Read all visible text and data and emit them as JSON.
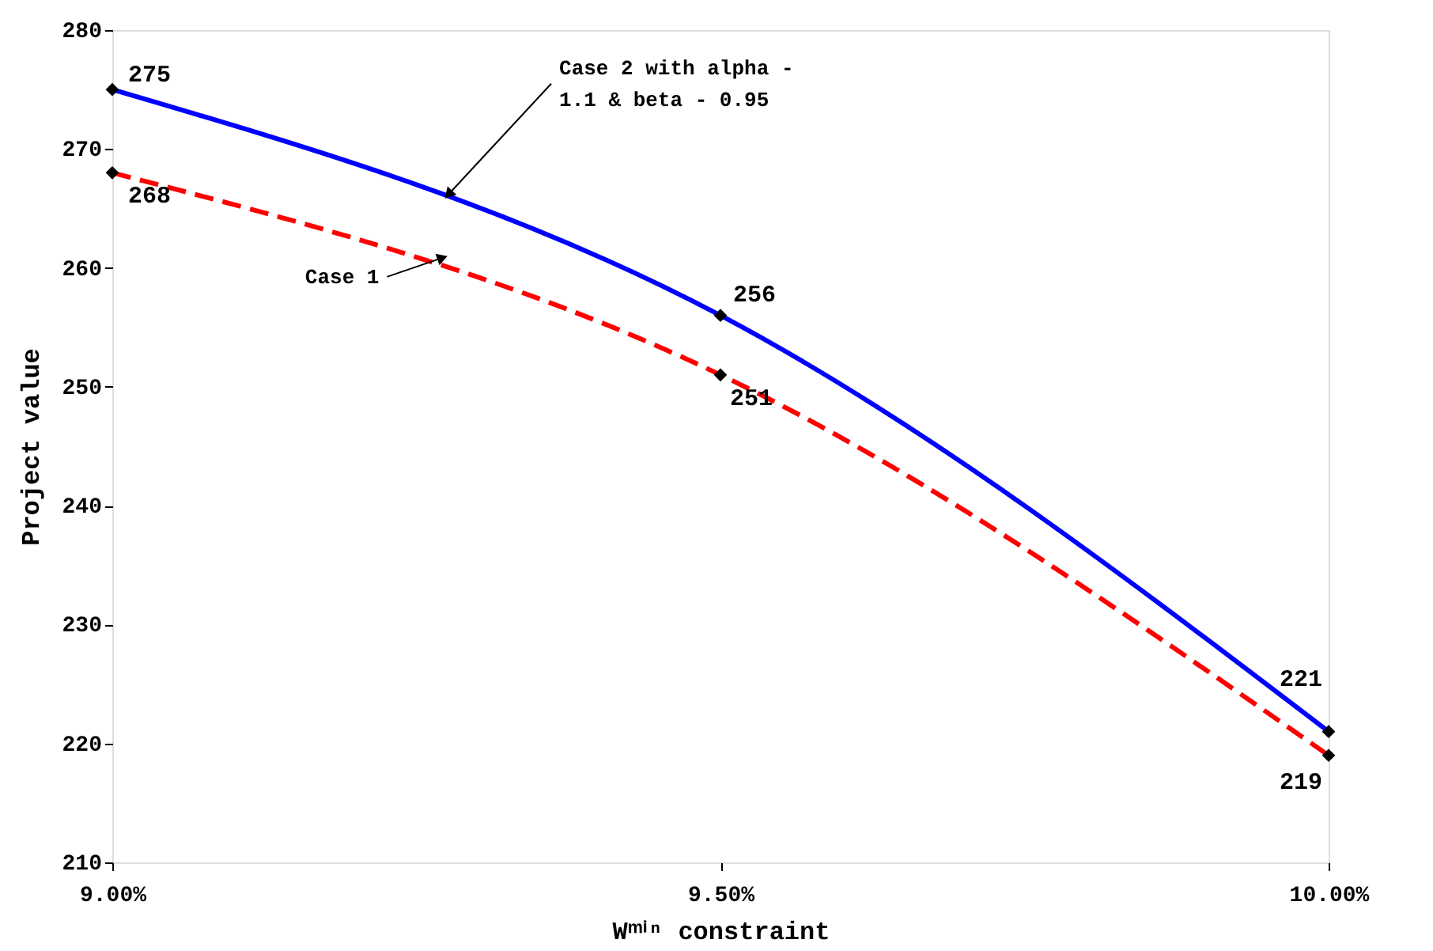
{
  "chart_data": {
    "type": "line",
    "xlabel": "Wᵐⁱⁿ constraint",
    "ylabel": "Project value",
    "x": [
      9.0,
      9.5,
      10.0
    ],
    "series": [
      {
        "color": "#0000ff",
        "values": [
          275,
          256,
          221
        ],
        "line_style": "solid"
      },
      {
        "color": "#ff0000",
        "values": [
          268,
          251,
          219
        ],
        "line_style": "dashed"
      }
    ],
    "xlim": [
      9.0,
      10.0
    ],
    "xticks": [
      {
        "value": 9.0,
        "label": "9.00%"
      },
      {
        "value": 9.5,
        "label": "9.50%"
      },
      {
        "value": 10.0,
        "label": "10.00%"
      }
    ],
    "ylim": [
      210,
      280
    ],
    "yticks": [
      210,
      220,
      230,
      240,
      250,
      260,
      270,
      280
    ],
    "marker": "diamond",
    "data_labels": true,
    "grid": false,
    "annotations": [
      {
        "text": "Case 2 with alpha -\n1.1 & beta - 0.95",
        "x": 9.28,
        "y": 265.6
      },
      "Case 1"
    ]
  }
}
